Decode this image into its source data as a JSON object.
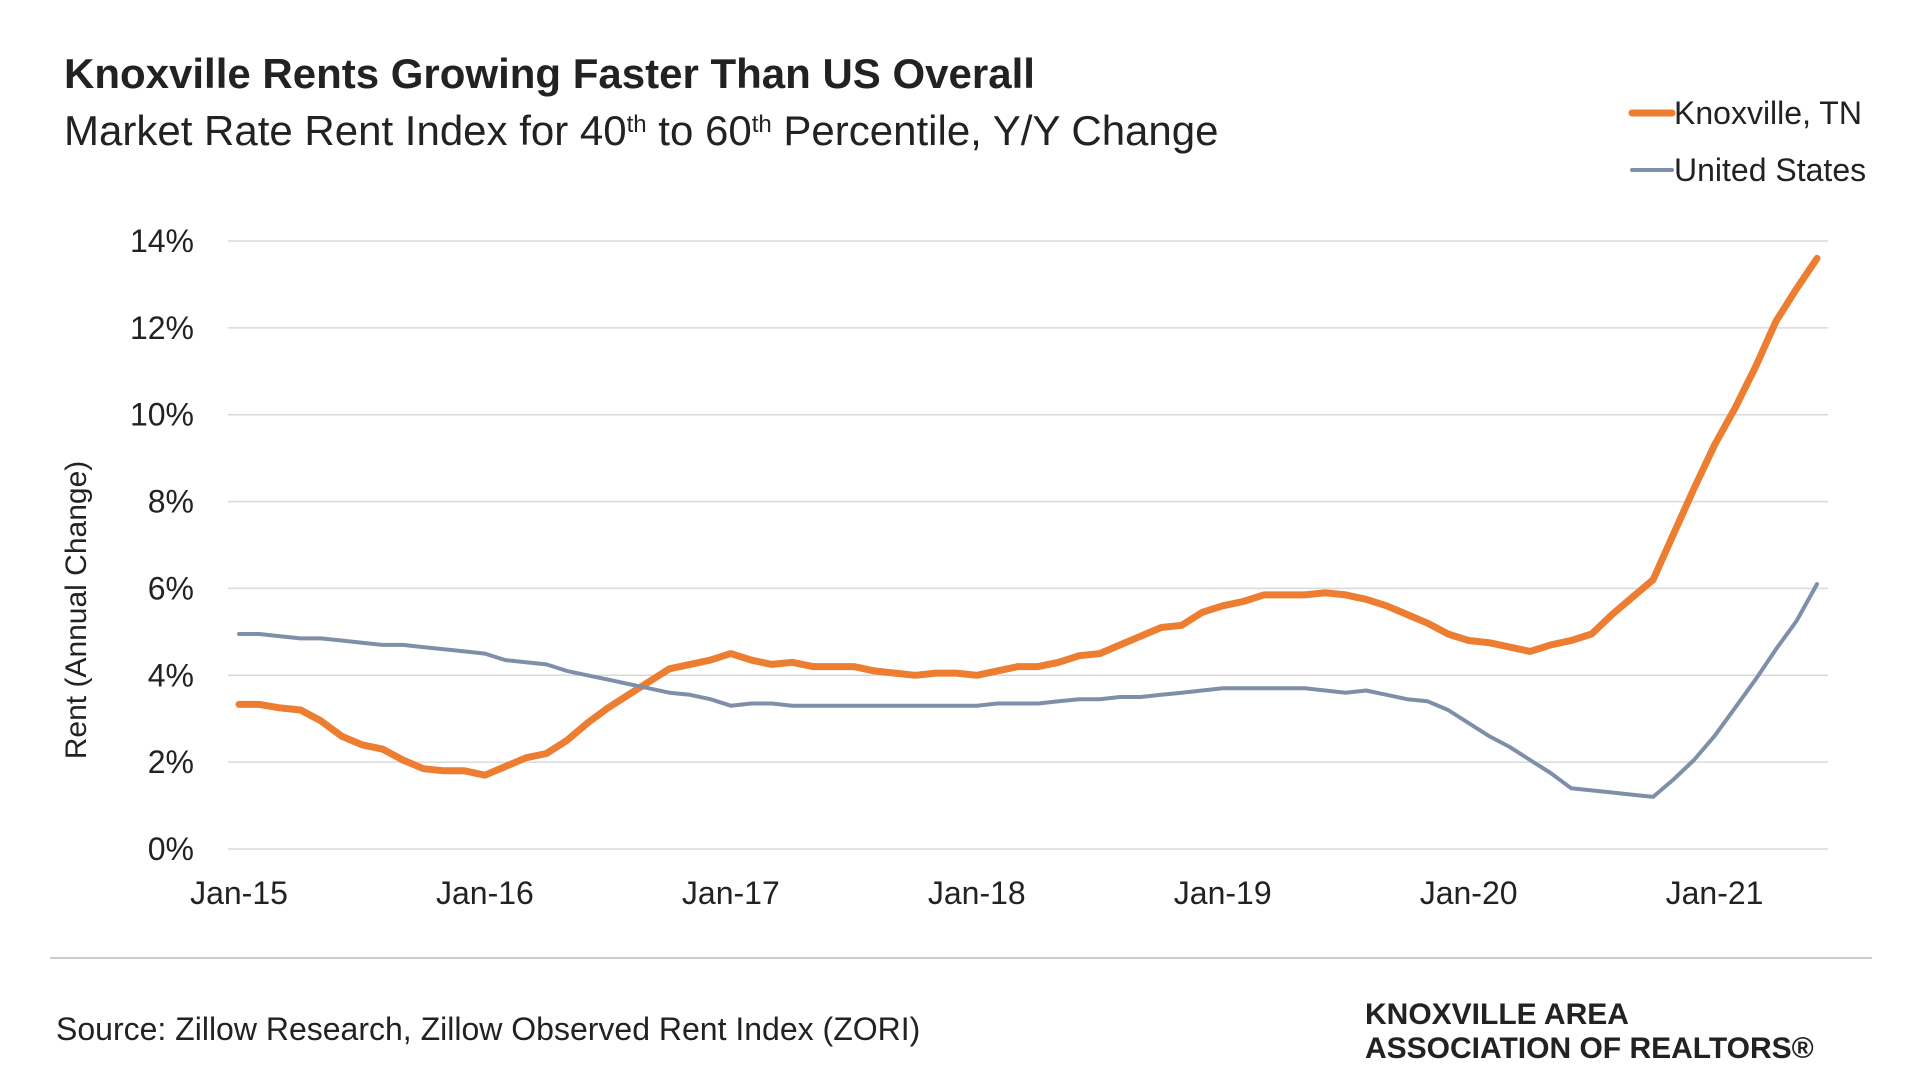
{
  "chart_data": {
    "type": "line",
    "title": "Knoxville Rents Growing Faster Than US Overall",
    "subtitle_parts": [
      "Market Rate Rent Index for 40",
      "th",
      " to 60",
      "th",
      " Percentile, Y/Y Change"
    ],
    "y_label": "Rent (Annual Change)",
    "source": "Source: Zillow Research, Zillow Observed Rent Index (ZORI)",
    "logo": [
      "KNOXVILLE AREA",
      "ASSOCIATION OF REALTORS®"
    ],
    "categories": [
      "Jan-15",
      null,
      null,
      null,
      null,
      null,
      null,
      null,
      null,
      null,
      null,
      null,
      "Jan-16",
      null,
      null,
      null,
      null,
      null,
      null,
      null,
      null,
      null,
      null,
      null,
      "Jan-17",
      null,
      null,
      null,
      null,
      null,
      null,
      null,
      null,
      null,
      null,
      null,
      "Jan-18",
      null,
      null,
      null,
      null,
      null,
      null,
      null,
      null,
      null,
      null,
      null,
      "Jan-19",
      null,
      null,
      null,
      null,
      null,
      null,
      null,
      null,
      null,
      null,
      null,
      "Jan-20",
      null,
      null,
      null,
      null,
      null,
      null,
      null,
      null,
      null,
      null,
      null,
      "Jan-21",
      null,
      null,
      null,
      null,
      null
    ],
    "series": [
      {
        "name": "Knoxville, TN",
        "color": "#ed7d31",
        "values": [
          3.33,
          3.33,
          3.25,
          3.2,
          2.95,
          2.6,
          2.4,
          2.3,
          2.05,
          1.85,
          1.8,
          1.8,
          1.7,
          1.9,
          2.1,
          2.2,
          2.5,
          2.9,
          3.25,
          3.55,
          3.85,
          4.15,
          4.25,
          4.35,
          4.5,
          4.35,
          4.25,
          4.3,
          4.2,
          4.2,
          4.2,
          4.1,
          4.05,
          4.0,
          4.05,
          4.05,
          4.0,
          4.1,
          4.2,
          4.2,
          4.3,
          4.45,
          4.5,
          4.7,
          4.9,
          5.1,
          5.15,
          5.45,
          5.6,
          5.7,
          5.85,
          5.85,
          5.85,
          5.9,
          5.85,
          5.75,
          5.6,
          5.4,
          5.2,
          4.95,
          4.8,
          4.75,
          4.65,
          4.55,
          4.7,
          4.8,
          4.95,
          5.4,
          5.8,
          6.2,
          7.25,
          8.3,
          9.3,
          10.15,
          11.1,
          12.15,
          12.9,
          13.6
        ]
      },
      {
        "name": "United States",
        "color": "#7f8fa9",
        "values": [
          4.95,
          4.95,
          4.9,
          4.85,
          4.85,
          4.8,
          4.75,
          4.7,
          4.7,
          4.65,
          4.6,
          4.55,
          4.5,
          4.35,
          4.3,
          4.25,
          4.1,
          4.0,
          3.9,
          3.8,
          3.7,
          3.6,
          3.55,
          3.45,
          3.3,
          3.35,
          3.35,
          3.3,
          3.3,
          3.3,
          3.3,
          3.3,
          3.3,
          3.3,
          3.3,
          3.3,
          3.3,
          3.35,
          3.35,
          3.35,
          3.4,
          3.45,
          3.45,
          3.5,
          3.5,
          3.55,
          3.6,
          3.65,
          3.7,
          3.7,
          3.7,
          3.7,
          3.7,
          3.65,
          3.6,
          3.65,
          3.55,
          3.45,
          3.4,
          3.2,
          2.9,
          2.6,
          2.35,
          2.05,
          1.75,
          1.4,
          1.35,
          1.3,
          1.25,
          1.2,
          1.6,
          2.05,
          2.6,
          3.25,
          3.9,
          4.6,
          5.25,
          6.1
        ]
      }
    ],
    "ylim": [
      0,
      14
    ],
    "yticks": [
      {
        "value": 0,
        "label": "0%"
      },
      {
        "value": 2,
        "label": "2%"
      },
      {
        "value": 4,
        "label": "4%"
      },
      {
        "value": 6,
        "label": "6%"
      },
      {
        "value": 8,
        "label": "8%"
      },
      {
        "value": 10,
        "label": "10%"
      },
      {
        "value": 12,
        "label": "12%"
      },
      {
        "value": 14,
        "label": "14%"
      }
    ],
    "grid": true,
    "legend": "top-right"
  }
}
